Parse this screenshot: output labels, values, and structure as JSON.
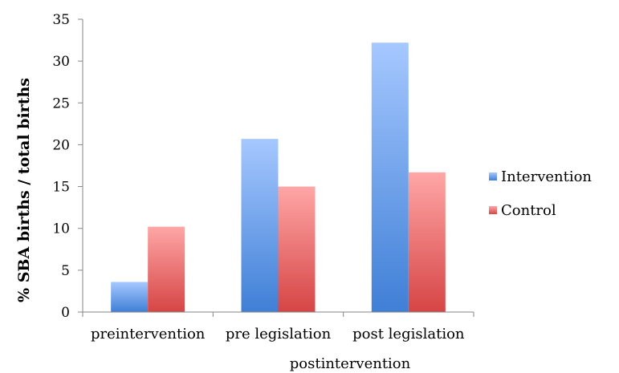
{
  "chart_data": {
    "type": "bar",
    "title": "",
    "xlabel": "postintervention",
    "ylabel": "% SBA births / total births",
    "categories": [
      "preintervention",
      "pre legislation",
      "post legislation"
    ],
    "series": [
      {
        "name": "Intervention",
        "values": [
          3.6,
          20.7,
          32.2
        ],
        "color_top": "#a6c8ff",
        "color_bottom": "#3f7fd6"
      },
      {
        "name": "Control",
        "values": [
          10.2,
          15.0,
          16.7
        ],
        "color_top": "#ffa6a6",
        "color_bottom": "#d64545"
      }
    ],
    "ylim": [
      0,
      35
    ],
    "yticks": [
      "0",
      "5",
      "10",
      "15",
      "20",
      "25",
      "30",
      "35"
    ],
    "grid": false,
    "legend_position": "right"
  }
}
